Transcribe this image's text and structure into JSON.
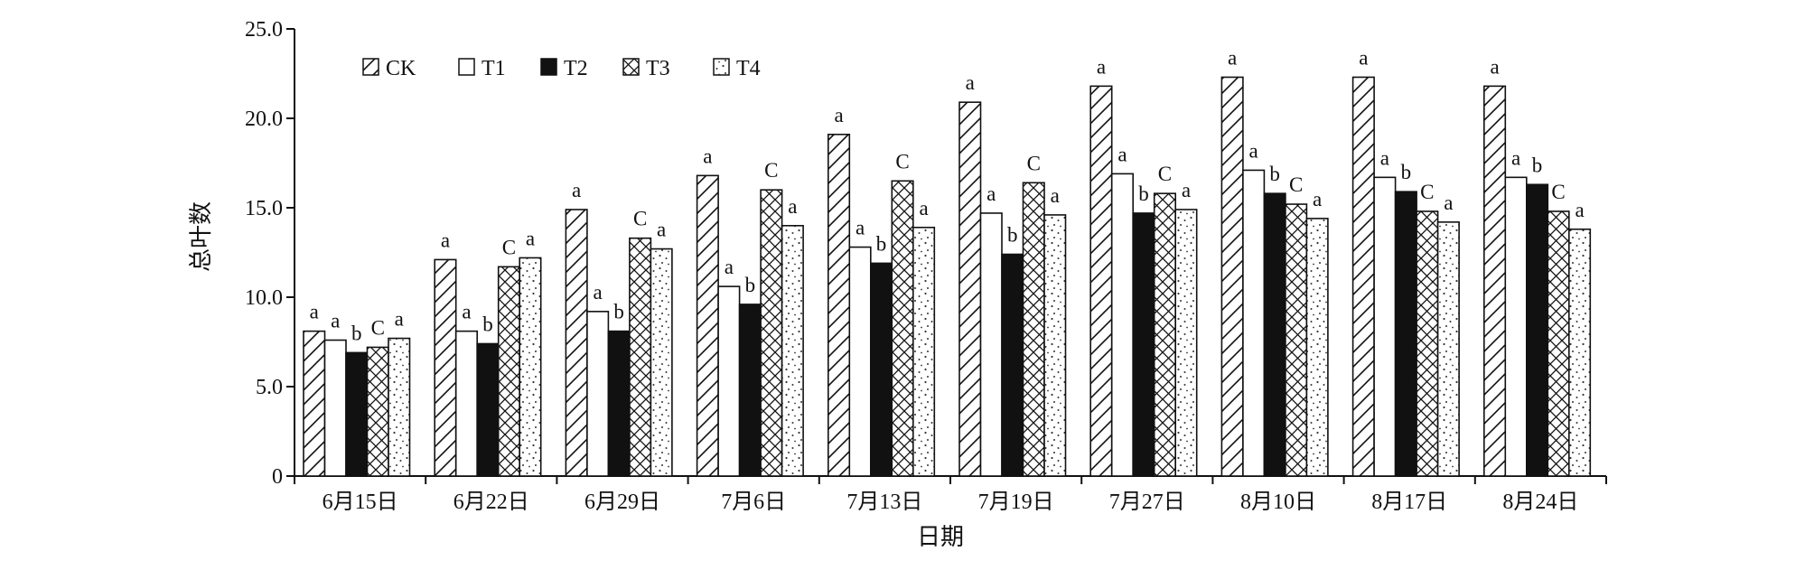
{
  "chart_data": {
    "type": "bar",
    "title": "",
    "xlabel": "日期",
    "ylabel": "总叶数",
    "ylim": [
      0,
      25
    ],
    "yticks": [
      "0",
      "5.0",
      "10.0",
      "15.0",
      "20.0",
      "25.0"
    ],
    "grid": false,
    "legend_position": "top-left",
    "categories": [
      "6月15日",
      "6月22日",
      "6月29日",
      "7月6日",
      "7月13日",
      "7月19日",
      "7月27日",
      "8月10日",
      "8月17日",
      "8月24日"
    ],
    "series": [
      {
        "name": "CK",
        "pattern": "diagonal-hatch",
        "values": [
          8.1,
          12.1,
          14.9,
          16.8,
          19.1,
          20.9,
          21.8,
          22.3,
          22.3,
          21.8
        ],
        "labels": [
          "a",
          "a",
          "a",
          "a",
          "a",
          "a",
          "a",
          "a",
          "a",
          "a"
        ]
      },
      {
        "name": "T1",
        "pattern": "white",
        "values": [
          7.6,
          8.1,
          9.2,
          10.6,
          12.8,
          14.7,
          16.9,
          17.1,
          16.7,
          16.7
        ],
        "labels": [
          "a",
          "a",
          "a",
          "a",
          "a",
          "a",
          "a",
          "a",
          "a",
          "a"
        ]
      },
      {
        "name": "T2",
        "pattern": "solid-black",
        "values": [
          6.9,
          7.4,
          8.1,
          9.6,
          11.9,
          12.4,
          14.7,
          15.8,
          15.9,
          16.3
        ],
        "labels": [
          "b",
          "b",
          "b",
          "b",
          "b",
          "b",
          "b",
          "b",
          "b",
          "b"
        ]
      },
      {
        "name": "T3",
        "pattern": "cross-hatch",
        "values": [
          7.2,
          11.7,
          13.3,
          16.0,
          16.5,
          16.4,
          15.8,
          15.2,
          14.8,
          14.8
        ],
        "labels": [
          "C",
          "C",
          "C",
          "C",
          "C",
          "C",
          "C",
          "C",
          "C",
          "C"
        ]
      },
      {
        "name": "T4",
        "pattern": "dotted",
        "values": [
          7.7,
          12.2,
          12.7,
          14.0,
          13.9,
          14.6,
          14.9,
          14.4,
          14.2,
          13.8
        ],
        "labels": [
          "a",
          "a",
          "a",
          "a",
          "a",
          "a",
          "a",
          "a",
          "a",
          "a"
        ]
      }
    ]
  }
}
